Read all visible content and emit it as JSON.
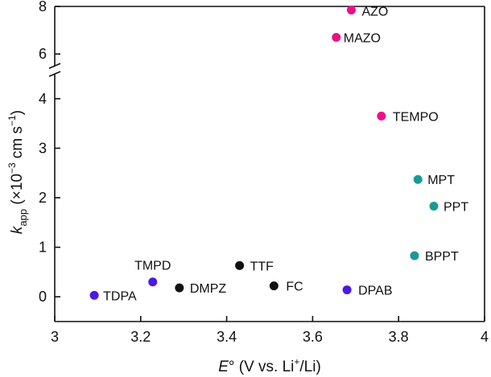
{
  "chart_data": {
    "type": "scatter",
    "title": "",
    "xlabel": "E° (V vs. Li+/Li)",
    "ylabel": "kapp (×10−3 cm s−1)",
    "xlabel_parts": {
      "symbol": "E",
      "deg": "°",
      "open": " (V vs. Li",
      "sup": "+",
      "close": "/Li)"
    },
    "ylabel_parts": {
      "symbol": "k",
      "sub": "app",
      "open": " (×10",
      "sup1": "−3",
      "mid": " cm s",
      "sup2": "−1",
      "close": ")"
    },
    "xlim": [
      3.0,
      4.0
    ],
    "xticks": [
      3.0,
      3.2,
      3.4,
      3.6,
      3.8,
      4.0
    ],
    "xtick_labels": [
      "3",
      "3.2",
      "3.4",
      "3.6",
      "3.8",
      "4"
    ],
    "y_axis_break": {
      "lower_range": [
        -0.5,
        4.5
      ],
      "upper_range": [
        5.5,
        8.0
      ]
    },
    "yticks": [
      0,
      1,
      2,
      3,
      4,
      6,
      8
    ],
    "ytick_labels": [
      "0",
      "1",
      "2",
      "3",
      "4",
      "6",
      "8"
    ],
    "grid": false,
    "series": [
      {
        "name": "pink",
        "color": "#ec108a",
        "points": [
          {
            "label": "AZO",
            "x": 3.69,
            "y": 7.85
          },
          {
            "label": "MAZO",
            "x": 3.655,
            "y": 6.7
          },
          {
            "label": "TEMPO",
            "x": 3.76,
            "y": 3.65
          }
        ]
      },
      {
        "name": "teal",
        "color": "#1a9a94",
        "points": [
          {
            "label": "MPT",
            "x": 3.845,
            "y": 2.37
          },
          {
            "label": "PPT",
            "x": 3.882,
            "y": 1.83
          },
          {
            "label": "BPPT",
            "x": 3.837,
            "y": 0.83
          }
        ]
      },
      {
        "name": "black",
        "color": "#111111",
        "points": [
          {
            "label": "TTF",
            "x": 3.43,
            "y": 0.63
          },
          {
            "label": "FC",
            "x": 3.51,
            "y": 0.22
          },
          {
            "label": "DMPZ",
            "x": 3.29,
            "y": 0.18
          }
        ]
      },
      {
        "name": "purple",
        "color": "#4a1ae6",
        "points": [
          {
            "label": "TMPD",
            "x": 3.228,
            "y": 0.3
          },
          {
            "label": "DPAB",
            "x": 3.68,
            "y": 0.14
          },
          {
            "label": "TDPA",
            "x": 3.092,
            "y": 0.03
          }
        ]
      }
    ]
  }
}
